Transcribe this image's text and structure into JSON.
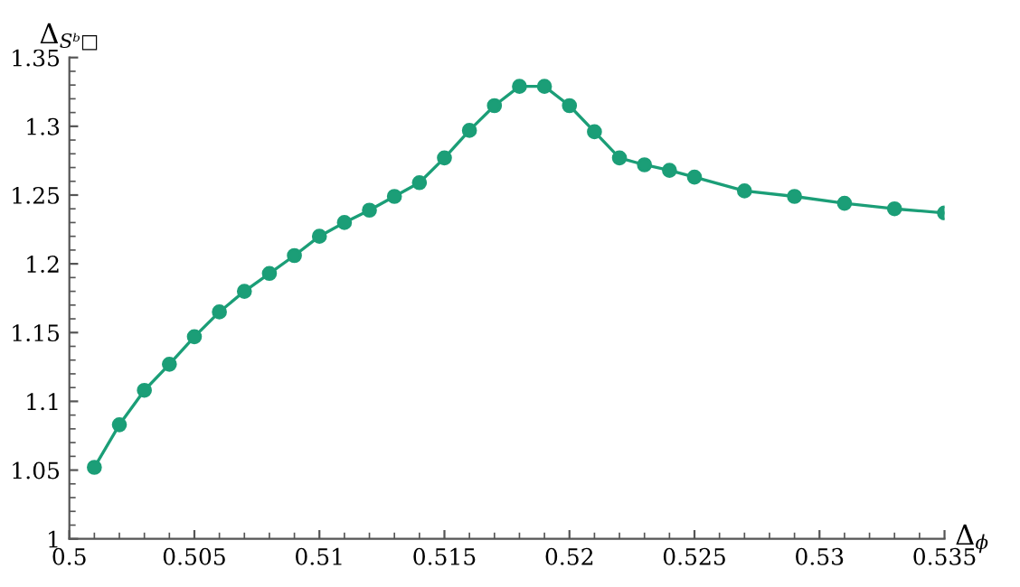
{
  "chart_data": {
    "type": "line",
    "xlabel": "Δ$_{ϕ}$",
    "ylabel": "Δ$_{Sᵇ□}$",
    "x": [
      0.501,
      0.502,
      0.503,
      0.504,
      0.505,
      0.506,
      0.507,
      0.508,
      0.509,
      0.51,
      0.511,
      0.512,
      0.513,
      0.514,
      0.515,
      0.516,
      0.517,
      0.518,
      0.519,
      0.52,
      0.521,
      0.522,
      0.523,
      0.524,
      0.525,
      0.527,
      0.529,
      0.531,
      0.533,
      0.535
    ],
    "series": [
      {
        "color": "#1b9e77",
        "values": [
          1.052,
          1.083,
          1.108,
          1.127,
          1.147,
          1.165,
          1.18,
          1.193,
          1.206,
          1.22,
          1.23,
          1.239,
          1.249,
          1.259,
          1.277,
          1.297,
          1.315,
          1.329,
          1.329,
          1.315,
          1.296,
          1.277,
          1.272,
          1.268,
          1.263,
          1.253,
          1.249,
          1.244,
          1.24,
          1.237
        ]
      }
    ],
    "xlim": [
      0.5,
      0.535
    ],
    "xticks": [
      0.5,
      0.505,
      0.51,
      0.515,
      0.52,
      0.525,
      0.53,
      0.535
    ],
    "ylim": [
      1,
      1.35
    ],
    "yticks": [
      1,
      1.05,
      1.1,
      1.15,
      1.2,
      1.25,
      1.3,
      1.35
    ],
    "grid": false,
    "legend": false,
    "marker": "circle",
    "line_style": "solid"
  }
}
